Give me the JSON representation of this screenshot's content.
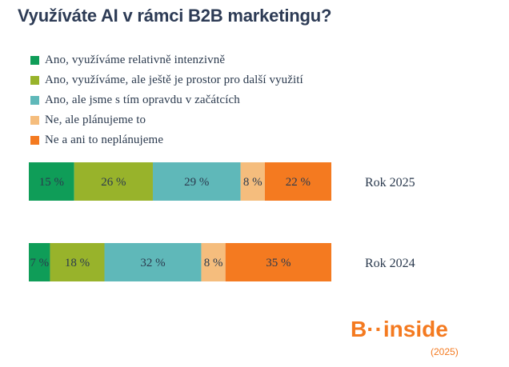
{
  "chart_data": {
    "type": "bar",
    "orientation": "horizontal",
    "stacked": true,
    "title": "Využíváte AI v rámci B2B marketingu?",
    "unit": "%",
    "legend_position": "top-left",
    "categories": [
      "Rok 2025",
      "Rok 2024"
    ],
    "series": [
      {
        "name": "Ano, využíváme relativně intenzivně",
        "color": "#0f9d58",
        "values": [
          15,
          7
        ],
        "labels": [
          "15 %",
          "7 %"
        ]
      },
      {
        "name": "Ano, využíváme, ale ještě je prostor pro další využití",
        "color": "#98b32b",
        "values": [
          26,
          18
        ],
        "labels": [
          "26 %",
          "18 %"
        ]
      },
      {
        "name": "Ano, ale jsme s tím opravdu v začátcích",
        "color": "#5fb8b9",
        "values": [
          29,
          32
        ],
        "labels": [
          "29 %",
          "32 %"
        ]
      },
      {
        "name": "Ne, ale plánujeme to",
        "color": "#f5bd7d",
        "values": [
          8,
          8
        ],
        "labels": [
          "8 %",
          "8 %"
        ]
      },
      {
        "name": "Ne a ani to neplánujeme",
        "color": "#f47a20",
        "values": [
          22,
          35
        ],
        "labels": [
          "22 %",
          "35 %"
        ]
      }
    ]
  },
  "logo": {
    "brand_letter": "B",
    "dots": "··",
    "brand_rest": "inside",
    "year": "(2025)",
    "color": "#f47a20"
  }
}
